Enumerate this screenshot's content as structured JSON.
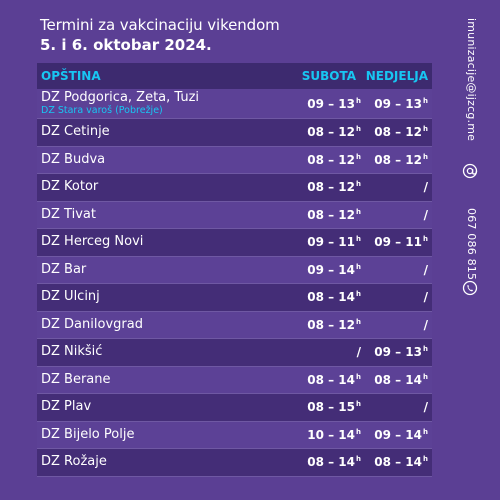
{
  "heading": {
    "line1": "Termini za vakcinaciju vikendom",
    "line2": "5. i 6. oktobar 2024."
  },
  "table": {
    "headers": {
      "municipality": "OPŠTINA",
      "saturday": "SUBOTA",
      "sunday": "NEDJELJA"
    },
    "rows": [
      {
        "name": "DZ Podgorica, Zeta, Tuzi",
        "sub": "DZ Stara varoš (Pobrežje)",
        "sat": "09 – 13",
        "sat_sup": "h",
        "sun": "09 – 13",
        "sun_sup": "h"
      },
      {
        "name": "DZ Cetinje",
        "sat": "08 – 12",
        "sat_sup": "h",
        "sun": "08 – 12",
        "sun_sup": "h"
      },
      {
        "name": "DZ Budva",
        "sat": "08 – 12",
        "sat_sup": "h",
        "sun": "08 – 12",
        "sun_sup": "h"
      },
      {
        "name": "DZ Kotor",
        "sat": "08 – 12",
        "sat_sup": "h",
        "sun": "/",
        "sun_sup": ""
      },
      {
        "name": "DZ Tivat",
        "sat": "08 – 12",
        "sat_sup": "h",
        "sun": "/",
        "sun_sup": ""
      },
      {
        "name": "DZ Herceg Novi",
        "sat": "09 – 11",
        "sat_sup": "h",
        "sun": "09 – 11",
        "sun_sup": "h"
      },
      {
        "name": "DZ Bar",
        "sat": "09 – 14",
        "sat_sup": "h",
        "sun": "/",
        "sun_sup": ""
      },
      {
        "name": "DZ Ulcinj",
        "sat": "08 – 14",
        "sat_sup": "h",
        "sun": "/",
        "sun_sup": ""
      },
      {
        "name": "DZ Danilovgrad",
        "sat": "08 – 12",
        "sat_sup": "h",
        "sun": "/",
        "sun_sup": ""
      },
      {
        "name": "DZ Nikšić",
        "sat": "/",
        "sat_sup": "",
        "sun": "09 – 13",
        "sun_sup": "h"
      },
      {
        "name": "DZ Berane",
        "sat": "08 – 14",
        "sat_sup": "h",
        "sun": "08 – 14",
        "sun_sup": "h"
      },
      {
        "name": "DZ Plav",
        "sat": "08 – 15",
        "sat_sup": "h",
        "sun": "/",
        "sun_sup": ""
      },
      {
        "name": "DZ Bijelo Polje",
        "sat": "10 – 14",
        "sat_sup": "h",
        "sun": "09 – 14",
        "sun_sup": "h"
      },
      {
        "name": "DZ Rožaje",
        "sat": "08 – 14",
        "sat_sup": "h",
        "sun": "08 – 14",
        "sun_sup": "h"
      }
    ]
  },
  "contact": {
    "email": "imunizacije@ijzcg.me",
    "phone": "067 086 815",
    "email_icon": "at-icon",
    "phone_icon": "phone-icon"
  },
  "colors": {
    "background": "#5b3f94",
    "accent": "#18c6f2",
    "header_bg": "#3d2a6f"
  }
}
